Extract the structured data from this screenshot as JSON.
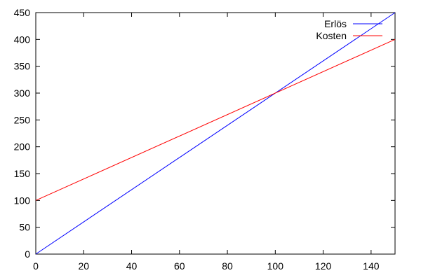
{
  "chart_data": {
    "type": "line",
    "title": "",
    "xlabel": "",
    "ylabel": "",
    "xlim": [
      0,
      150
    ],
    "ylim": [
      0,
      450
    ],
    "x_ticks": [
      0,
      20,
      40,
      60,
      80,
      100,
      120,
      140
    ],
    "y_ticks": [
      0,
      50,
      100,
      150,
      200,
      250,
      300,
      350,
      400,
      450
    ],
    "grid": false,
    "legend_position": "top-right",
    "series": [
      {
        "name": "Erlös",
        "color": "#0000ff",
        "x": [
          0,
          150
        ],
        "y": [
          0,
          450
        ]
      },
      {
        "name": "Kosten",
        "color": "#ff0000",
        "x": [
          0,
          150
        ],
        "y": [
          100,
          400
        ]
      }
    ]
  }
}
